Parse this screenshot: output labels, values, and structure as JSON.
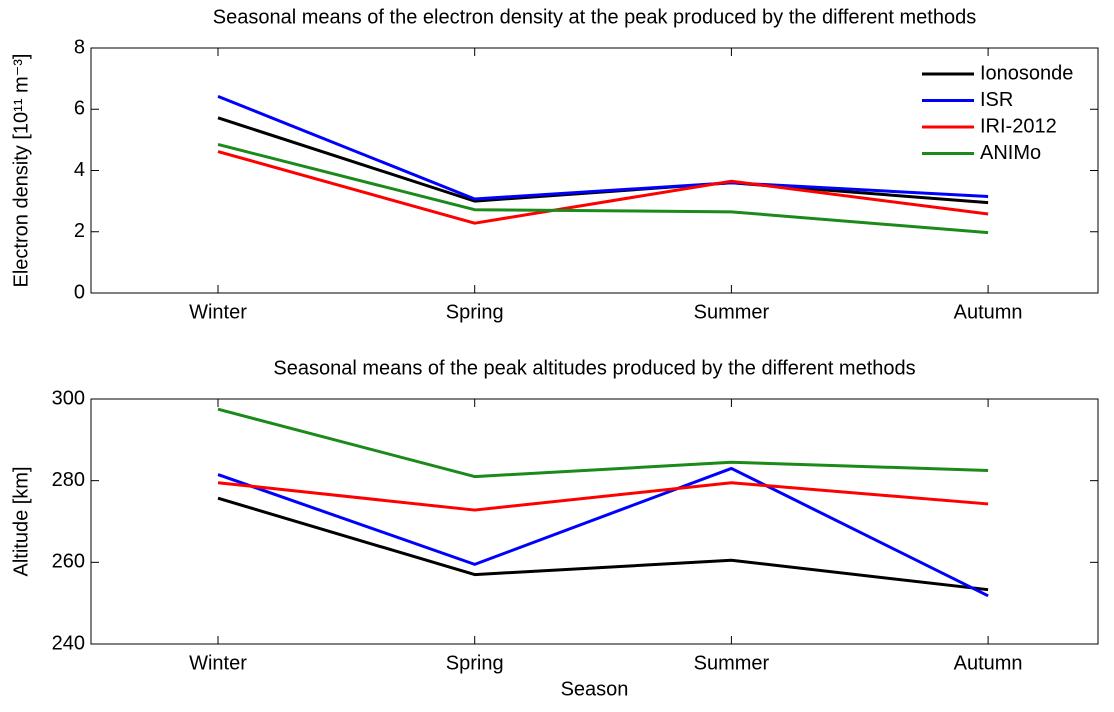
{
  "chart_data": [
    {
      "type": "line",
      "title": "Seasonal means of the electron density at the peak produced by the different methods",
      "ylabel": "Electron density [10¹¹ m⁻³]",
      "categories": [
        "Winter",
        "Spring",
        "Summer",
        "Autumn"
      ],
      "series": [
        {
          "name": "Ionosonde",
          "color": "#000000",
          "values": [
            5.72,
            3.0,
            3.6,
            2.95
          ]
        },
        {
          "name": "ISR",
          "color": "#0000ff",
          "values": [
            6.42,
            3.07,
            3.6,
            3.15
          ]
        },
        {
          "name": "IRI-2012",
          "color": "#ff0000",
          "values": [
            4.62,
            2.28,
            3.65,
            2.58
          ]
        },
        {
          "name": "ANIMo",
          "color": "#1a8a1a",
          "values": [
            4.85,
            2.72,
            2.65,
            1.97
          ]
        }
      ],
      "ylim": [
        0,
        8
      ],
      "yticks": [
        0,
        2,
        4,
        6,
        8
      ],
      "legend": "upper right"
    },
    {
      "type": "line",
      "title": "Seasonal means of the peak altitudes produced by the different methods",
      "xlabel": "Season",
      "ylabel": "Altitude [km]",
      "categories": [
        "Winter",
        "Spring",
        "Summer",
        "Autumn"
      ],
      "series": [
        {
          "name": "Ionosonde",
          "color": "#000000",
          "values": [
            275.7,
            257,
            260.5,
            253.3
          ]
        },
        {
          "name": "ISR",
          "color": "#0000ff",
          "values": [
            281.5,
            259.5,
            283,
            251.8
          ]
        },
        {
          "name": "IRI-2012",
          "color": "#ff0000",
          "values": [
            279.5,
            272.8,
            279.5,
            274.3
          ]
        },
        {
          "name": "ANIMo",
          "color": "#1a8a1a",
          "values": [
            297.5,
            281,
            284.5,
            282.5
          ]
        }
      ],
      "ylim": [
        240,
        300
      ],
      "yticks": [
        240,
        260,
        280,
        300
      ]
    }
  ]
}
